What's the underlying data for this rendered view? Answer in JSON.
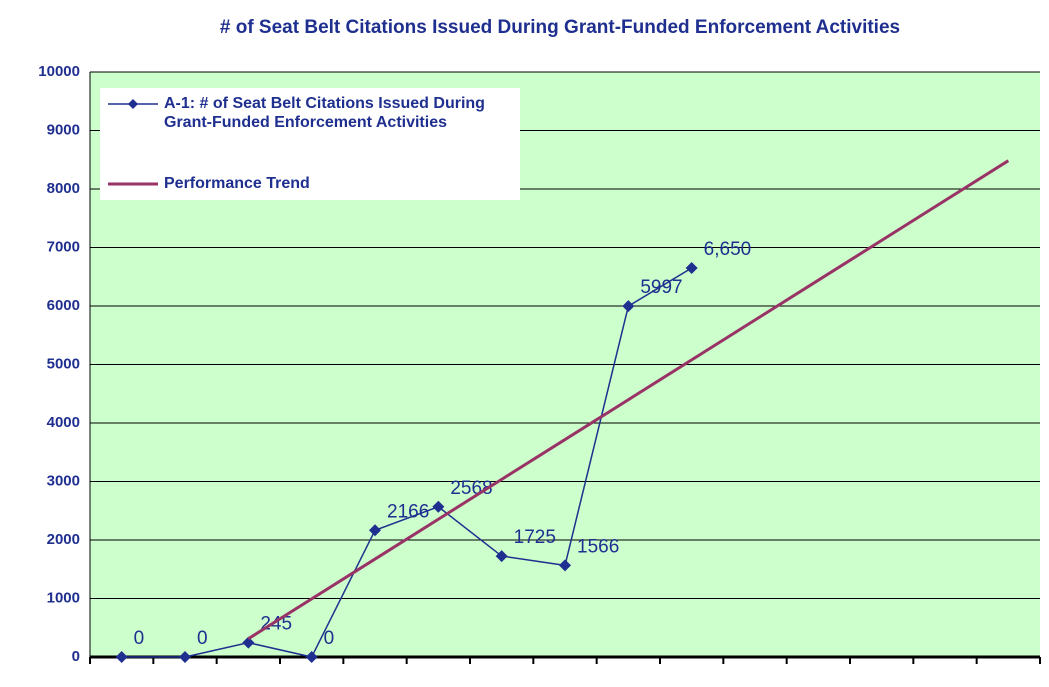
{
  "chart_data": {
    "type": "line",
    "title": "# of Seat Belt Citations Issued During Grant-Funded Enforcement Activities",
    "categories": [
      null,
      null,
      null,
      null,
      null,
      null,
      null,
      null,
      null,
      null,
      null,
      null,
      null,
      null,
      null
    ],
    "series": [
      {
        "name": "A-1: # of Seat Belt Citations Issued During Grant-Funded Enforcement Activities",
        "color": "#1f2f8f",
        "marker": "diamond",
        "values": [
          0,
          0,
          245,
          0,
          2166,
          2568,
          1725,
          1566,
          5997,
          6650,
          null,
          null,
          null,
          null,
          null
        ],
        "value_labels": [
          "0",
          "0",
          "245",
          "0",
          "2166",
          "2568",
          "1725",
          "1566",
          "5997",
          "6,650",
          null,
          null,
          null,
          null,
          null
        ]
      },
      {
        "name": "Performance Trend",
        "color": "#993366",
        "values": [
          null,
          null,
          312,
          993,
          1674,
          2355,
          3036,
          3717,
          4398,
          5079,
          5760,
          6441,
          7122,
          7803,
          8484
        ]
      }
    ],
    "ylim": [
      0,
      10000
    ],
    "yticks": [
      0,
      1000,
      2000,
      3000,
      4000,
      5000,
      6000,
      7000,
      8000,
      9000,
      10000
    ],
    "grid": true,
    "legend": "upper left",
    "plot_background": "#ccffcc"
  }
}
